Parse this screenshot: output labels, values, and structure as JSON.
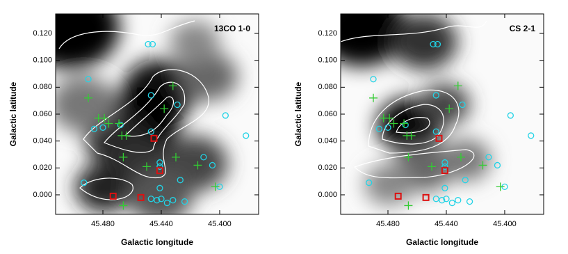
{
  "chart_data": [
    {
      "type": "scatter",
      "title": "13CO 1-0",
      "x_label": "Galactic longitude",
      "y_label": "Galactic latitude",
      "xlim": [
        45.5124,
        45.3733
      ],
      "ylim": [
        -0.0145,
        0.1345
      ],
      "xticks": [
        {
          "value": 45.48,
          "label": "45.480"
        },
        {
          "value": 45.44,
          "label": "45.440"
        },
        {
          "value": 45.4,
          "label": "45.400"
        }
      ],
      "yticks": [
        {
          "value": 0,
          "label": "0.000"
        },
        {
          "value": 0.02,
          "label": "0.020"
        },
        {
          "value": 0.04,
          "label": "0.040"
        },
        {
          "value": 0.06,
          "label": "0.060"
        },
        {
          "value": 0.08,
          "label": "0.080"
        },
        {
          "value": 0.1,
          "label": "0.100"
        },
        {
          "value": 0.12,
          "label": "0.120"
        }
      ],
      "series": [
        {
          "marker": "circle",
          "color": "#22d3e6",
          "x": [
            45.49,
            45.449,
            45.446,
            45.447,
            45.429,
            45.396,
            45.382,
            45.486,
            45.48,
            45.468,
            45.447,
            45.441,
            45.441,
            45.411,
            45.405,
            45.4,
            45.493,
            45.441,
            45.427,
            45.447,
            45.443,
            45.44,
            45.436,
            45.432,
            45.424
          ],
          "y": [
            0.086,
            0.112,
            0.112,
            0.074,
            0.067,
            0.059,
            0.044,
            0.049,
            0.05,
            0.052,
            0.047,
            0.024,
            0.021,
            0.028,
            0.022,
            0.006,
            0.009,
            0.005,
            0.011,
            -0.003,
            -0.004,
            -0.003,
            -0.006,
            -0.004,
            -0.005
          ]
        },
        {
          "marker": "plus",
          "color": "#33cc33",
          "x": [
            45.49,
            45.483,
            45.479,
            45.476,
            45.469,
            45.467,
            45.464,
            45.466,
            45.45,
            45.432,
            45.438,
            45.43,
            45.415,
            45.403,
            45.466
          ],
          "y": [
            0.072,
            0.057,
            0.057,
            0.053,
            0.053,
            0.044,
            0.044,
            0.028,
            0.021,
            0.081,
            0.064,
            0.028,
            0.022,
            0.006,
            -0.008
          ]
        },
        {
          "marker": "square",
          "color": "#dd1111",
          "x": [
            45.445,
            45.441,
            45.473,
            45.454
          ],
          "y": [
            0.042,
            0.018,
            -0.001,
            -0.002
          ]
        }
      ]
    },
    {
      "type": "scatter",
      "title": "CS 2-1",
      "x_label": "Galactic longitude",
      "y_label": "Galactic latitude",
      "xlim": [
        45.5124,
        45.3733
      ],
      "ylim": [
        -0.0145,
        0.1345
      ],
      "xticks": [
        {
          "value": 45.48,
          "label": "45.480"
        },
        {
          "value": 45.44,
          "label": "45.440"
        },
        {
          "value": 45.4,
          "label": "45.400"
        }
      ],
      "yticks": [
        {
          "value": 0,
          "label": "0.000"
        },
        {
          "value": 0.02,
          "label": "0.020"
        },
        {
          "value": 0.04,
          "label": "0.040"
        },
        {
          "value": 0.06,
          "label": "0.060"
        },
        {
          "value": 0.08,
          "label": "0.080"
        },
        {
          "value": 0.1,
          "label": "0.100"
        },
        {
          "value": 0.12,
          "label": "0.120"
        }
      ],
      "series": [
        {
          "marker": "circle",
          "color": "#22d3e6",
          "x": [
            45.49,
            45.449,
            45.446,
            45.447,
            45.429,
            45.396,
            45.382,
            45.486,
            45.48,
            45.468,
            45.447,
            45.441,
            45.441,
            45.411,
            45.405,
            45.4,
            45.493,
            45.441,
            45.427,
            45.447,
            45.443,
            45.44,
            45.436,
            45.432,
            45.424
          ],
          "y": [
            0.086,
            0.112,
            0.112,
            0.074,
            0.067,
            0.059,
            0.044,
            0.049,
            0.05,
            0.052,
            0.047,
            0.024,
            0.021,
            0.028,
            0.022,
            0.006,
            0.009,
            0.005,
            0.011,
            -0.003,
            -0.004,
            -0.003,
            -0.006,
            -0.004,
            -0.005
          ]
        },
        {
          "marker": "plus",
          "color": "#33cc33",
          "x": [
            45.49,
            45.483,
            45.479,
            45.476,
            45.469,
            45.467,
            45.464,
            45.466,
            45.45,
            45.432,
            45.438,
            45.43,
            45.415,
            45.403,
            45.466
          ],
          "y": [
            0.072,
            0.057,
            0.057,
            0.053,
            0.053,
            0.044,
            0.044,
            0.028,
            0.021,
            0.081,
            0.064,
            0.028,
            0.022,
            0.006,
            -0.008
          ]
        },
        {
          "marker": "square",
          "color": "#dd1111",
          "x": [
            45.445,
            45.441,
            45.473,
            45.454
          ],
          "y": [
            0.042,
            0.018,
            -0.001,
            -0.002
          ]
        }
      ]
    }
  ]
}
